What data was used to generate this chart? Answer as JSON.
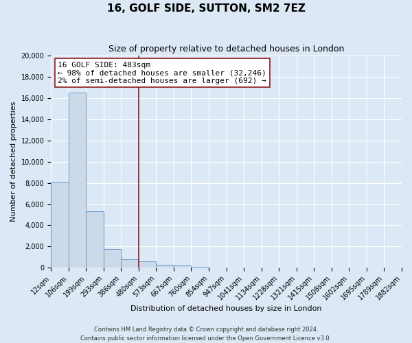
{
  "title": "16, GOLF SIDE, SUTTON, SM2 7EZ",
  "subtitle": "Size of property relative to detached houses in London",
  "xlabel": "Distribution of detached houses by size in London",
  "ylabel": "Number of detached properties",
  "bar_values": [
    8100,
    16500,
    5300,
    1800,
    800,
    600,
    300,
    250,
    100,
    0,
    0,
    0,
    0,
    0,
    0,
    0,
    0,
    0,
    0,
    0
  ],
  "bar_labels": [
    "12sqm",
    "106sqm",
    "199sqm",
    "293sqm",
    "386sqm",
    "480sqm",
    "573sqm",
    "667sqm",
    "760sqm",
    "854sqm",
    "947sqm",
    "1041sqm",
    "1134sqm",
    "1228sqm",
    "1321sqm",
    "1415sqm",
    "1508sqm",
    "1602sqm",
    "1695sqm",
    "1789sqm",
    "1882sqm"
  ],
  "bar_color": "#ccd9e8",
  "bar_edge_color": "#6699cc",
  "vline_x": 5.0,
  "vline_color": "#8b1a1a",
  "annotation_title": "16 GOLF SIDE: 483sqm",
  "annotation_line2": "← 98% of detached houses are smaller (32,246)",
  "annotation_line3": "2% of semi-detached houses are larger (692) →",
  "ylim": [
    0,
    20000
  ],
  "yticks": [
    0,
    2000,
    4000,
    6000,
    8000,
    10000,
    12000,
    14000,
    16000,
    18000,
    20000
  ],
  "background_color": "#dce8f5",
  "plot_bg_color": "#dce8f5",
  "grid_color": "#ffffff",
  "footer_line1": "Contains HM Land Registry data © Crown copyright and database right 2024.",
  "footer_line2": "Contains public sector information licensed under the Open Government Licence v3.0.",
  "title_fontsize": 11,
  "subtitle_fontsize": 9,
  "annotation_fontsize": 8,
  "tick_fontsize": 7,
  "ylabel_fontsize": 8,
  "xlabel_fontsize": 8
}
